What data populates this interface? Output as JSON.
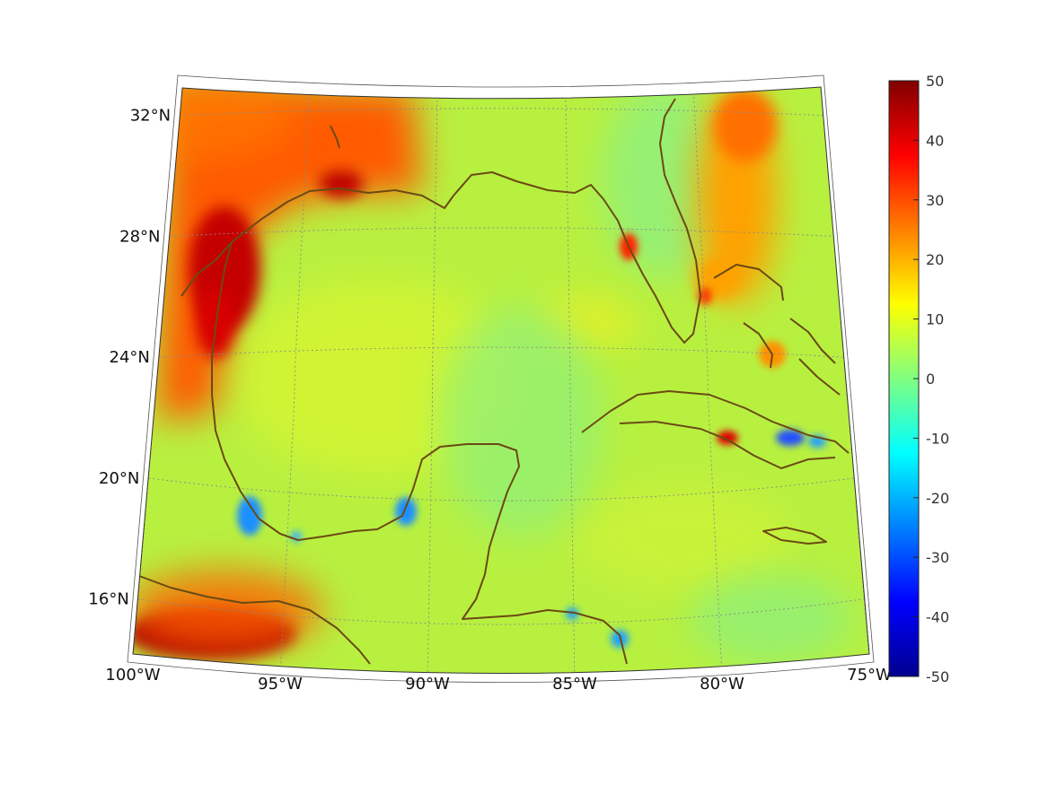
{
  "map": {
    "projection": "conic",
    "region": "Gulf of Mexico and Caribbean",
    "lon_range": [
      -100,
      -75
    ],
    "lat_range": [
      14,
      33
    ],
    "grid": true,
    "lon_ticks": [
      {
        "value": -100,
        "label": "100°W"
      },
      {
        "value": -95,
        "label": "95°W"
      },
      {
        "value": -90,
        "label": "90°W"
      },
      {
        "value": -85,
        "label": "85°W"
      },
      {
        "value": -80,
        "label": "80°W"
      },
      {
        "value": -75,
        "label": "75°W"
      }
    ],
    "lat_ticks": [
      {
        "value": 16,
        "label": "16°N"
      },
      {
        "value": 20,
        "label": "20°N"
      },
      {
        "value": 24,
        "label": "24°N"
      },
      {
        "value": 28,
        "label": "28°N"
      },
      {
        "value": 32,
        "label": "32°N"
      }
    ],
    "coastline_color": "#6b4a14",
    "colormap": "jet"
  },
  "colorbar": {
    "min": -50,
    "max": 50,
    "ticks": [
      {
        "value": 50,
        "label": "50"
      },
      {
        "value": 40,
        "label": "40"
      },
      {
        "value": 30,
        "label": "30"
      },
      {
        "value": 20,
        "label": "20"
      },
      {
        "value": 10,
        "label": "10"
      },
      {
        "value": 0,
        "label": "0"
      },
      {
        "value": -10,
        "label": "-10"
      },
      {
        "value": -20,
        "label": "-20"
      },
      {
        "value": -30,
        "label": "-30"
      },
      {
        "value": -40,
        "label": "-40"
      },
      {
        "value": -50,
        "label": "-50"
      }
    ]
  }
}
